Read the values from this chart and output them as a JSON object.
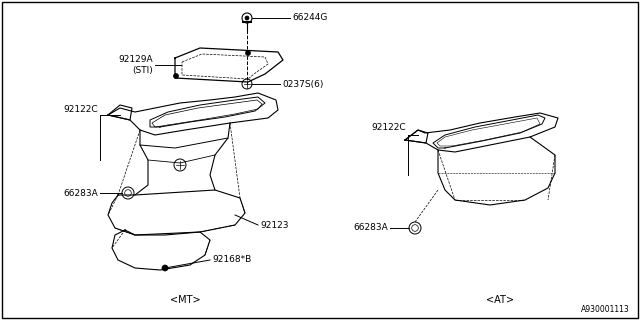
{
  "background_color": "#ffffff",
  "line_color": "#000000",
  "text_color": "#000000",
  "diagram_id": "A930001113",
  "mt_label": "<MT>",
  "at_label": "<AT>",
  "fs_label": 7,
  "fs_partno": 6.5
}
